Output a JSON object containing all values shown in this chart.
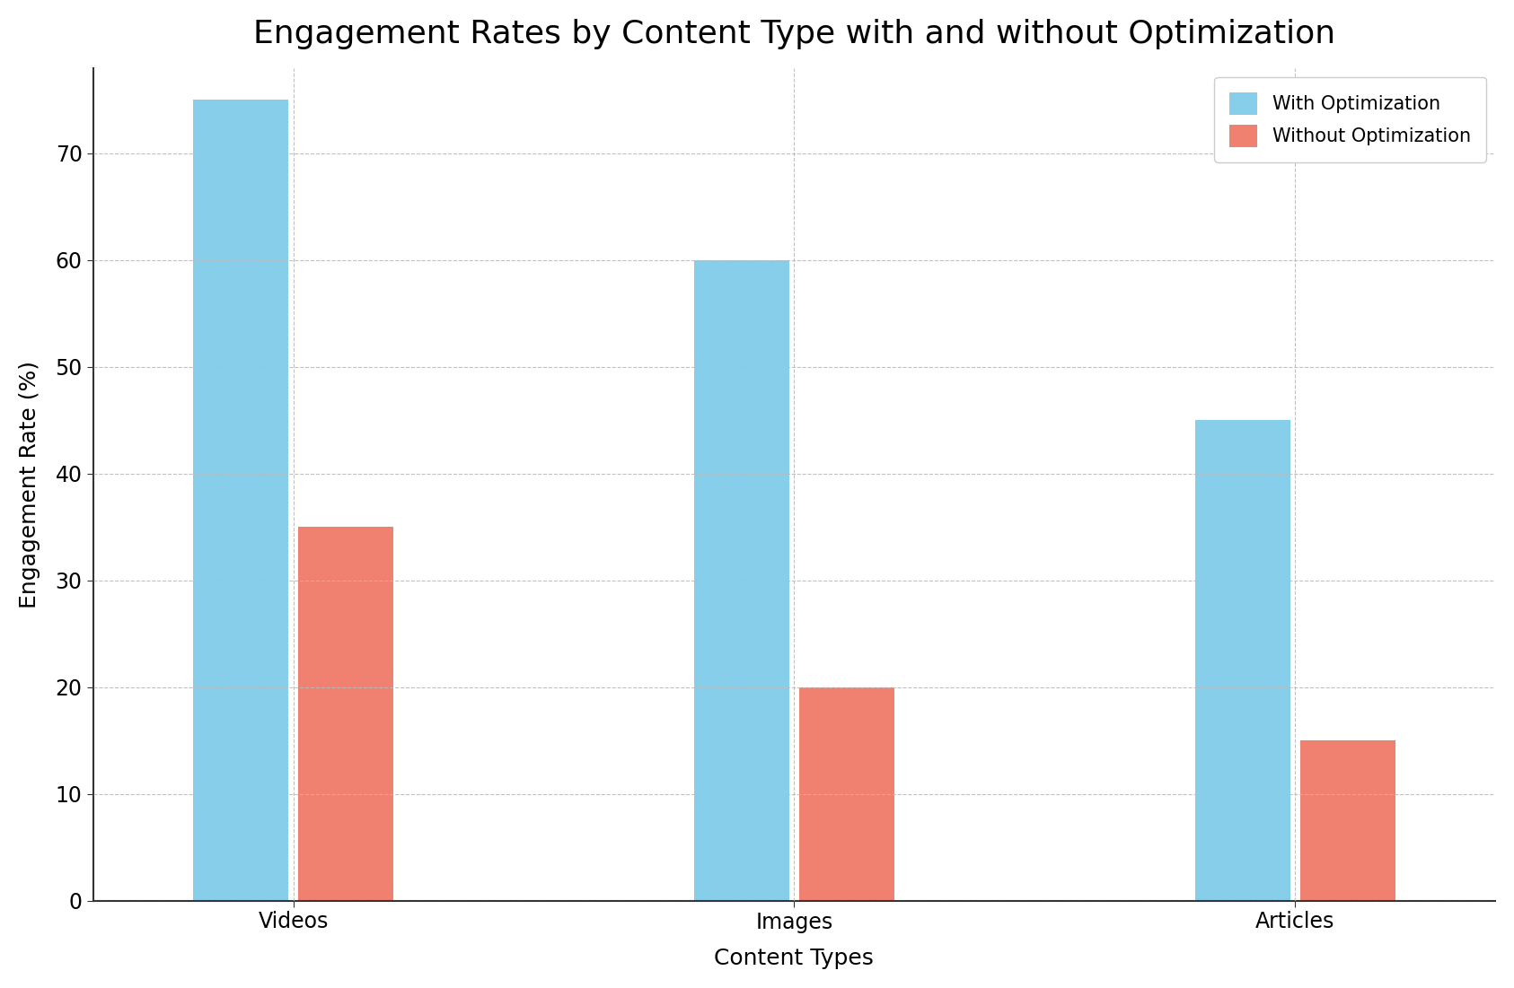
{
  "title": "Engagement Rates by Content Type with and without Optimization",
  "xlabel": "Content Types",
  "ylabel": "Engagement Rate (%)",
  "categories": [
    "Videos",
    "Images",
    "Articles"
  ],
  "series": [
    {
      "label": "With Optimization",
      "values": [
        75,
        60,
        45
      ],
      "color": "#87CEEB"
    },
    {
      "label": "Without Optimization",
      "values": [
        35,
        20,
        15
      ],
      "color": "#F08070"
    }
  ],
  "ylim": [
    0,
    78
  ],
  "yticks": [
    0,
    10,
    20,
    30,
    40,
    50,
    60,
    70
  ],
  "grid": true,
  "background_color": "#FFFFFF",
  "title_fontsize": 26,
  "label_fontsize": 18,
  "tick_fontsize": 17,
  "legend_fontsize": 15,
  "bar_width": 0.38,
  "bar_gap": 0.04,
  "legend_position": "upper right"
}
